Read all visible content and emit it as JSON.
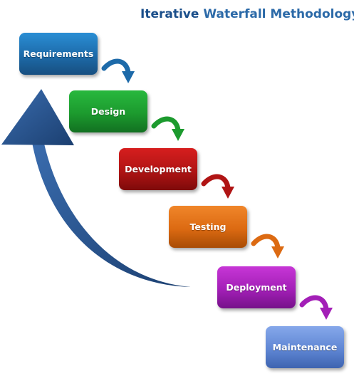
{
  "title": {
    "part1": "Iterative",
    "part2": "Waterfall Methodology"
  },
  "stages": [
    {
      "label": "Requirements",
      "color": "#1d6aa9"
    },
    {
      "label": "Design",
      "color": "#1c9a2e"
    },
    {
      "label": "Development",
      "color": "#b01414"
    },
    {
      "label": "Testing",
      "color": "#dc6a12"
    },
    {
      "label": "Deployment",
      "color": "#a31fb7"
    },
    {
      "label": "Maintenance",
      "color": "#5f86d4"
    }
  ],
  "connector_arrow_colors": [
    "#1d6aa9",
    "#1c9a2e",
    "#b01414",
    "#dc6a12",
    "#a31fb7"
  ],
  "feedback_arrow_color": "#1f4e86"
}
